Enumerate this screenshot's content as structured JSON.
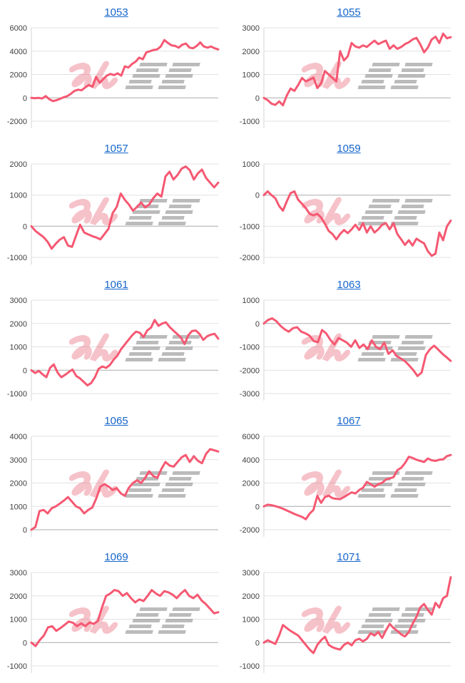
{
  "colors": {
    "line": "#f55872",
    "link": "#1766cc",
    "grid": "#e2e2e2",
    "baseline": "#ababab",
    "axis": "#d6d6d6",
    "tick": "#3f3f3f",
    "wm_pink": "rgba(231,95,113,0.38)",
    "wm_gray": "rgba(125,125,125,0.52)"
  },
  "watermark": {
    "text": "みんレポ",
    "style": "pink-kana-plus-gray-striped-logo"
  },
  "chart_data": [
    {
      "type": "line",
      "title": "1053",
      "ylim": [
        -2000,
        6000
      ],
      "yticks": [
        6000,
        4000,
        2000,
        0,
        -2000
      ],
      "grid": true,
      "values": [
        0,
        -30,
        0,
        -50,
        150,
        -120,
        -280,
        -200,
        -80,
        50,
        150,
        350,
        600,
        700,
        650,
        900,
        1100,
        950,
        1800,
        1300,
        1600,
        1900,
        2050,
        1950,
        2100,
        1900,
        2700,
        2600,
        2900,
        3100,
        3450,
        3300,
        3900,
        4000,
        4100,
        4150,
        4400,
        4950,
        4700,
        4500,
        4450,
        4300,
        4550,
        4650,
        4300,
        4250,
        4450,
        4750,
        4400,
        4300,
        4400,
        4250,
        4150
      ]
    },
    {
      "type": "line",
      "title": "1055",
      "ylim": [
        -1000,
        3000
      ],
      "yticks": [
        3000,
        2000,
        1000,
        0,
        -1000
      ],
      "grid": true,
      "values": [
        0,
        -100,
        -250,
        -300,
        -150,
        -320,
        100,
        400,
        300,
        550,
        850,
        700,
        780,
        870,
        420,
        620,
        1150,
        1000,
        850,
        700,
        2000,
        1600,
        1780,
        2350,
        2200,
        2150,
        2250,
        2180,
        2320,
        2450,
        2300,
        2380,
        2450,
        2100,
        2250,
        2100,
        2180,
        2300,
        2380,
        2500,
        2570,
        2300,
        1950,
        2150,
        2500,
        2620,
        2350,
        2750,
        2550,
        2600
      ]
    },
    {
      "type": "line",
      "title": "1057",
      "ylim": [
        -1000,
        2000
      ],
      "yticks": [
        2000,
        1000,
        0,
        -1000
      ],
      "grid": true,
      "values": [
        0,
        -150,
        -250,
        -350,
        -500,
        -720,
        -560,
        -430,
        -350,
        -620,
        -660,
        -300,
        50,
        -200,
        -260,
        -320,
        -360,
        -420,
        -250,
        -80,
        420,
        620,
        1050,
        850,
        700,
        500,
        620,
        760,
        600,
        700,
        900,
        1050,
        950,
        1600,
        1750,
        1500,
        1650,
        1850,
        1920,
        1800,
        1500,
        1700,
        1820,
        1550,
        1400,
        1250,
        1400
      ]
    },
    {
      "type": "line",
      "title": "1059",
      "ylim": [
        -2000,
        1000
      ],
      "yticks": [
        1000,
        0,
        -1000,
        -2000
      ],
      "grid": true,
      "values": [
        0,
        120,
        0,
        -100,
        -350,
        -500,
        -200,
        60,
        120,
        -150,
        -280,
        -420,
        -600,
        -650,
        -600,
        -720,
        -920,
        -1150,
        -1250,
        -1420,
        -1250,
        -1120,
        -1220,
        -1100,
        -950,
        -1120,
        -900,
        -1200,
        -1000,
        -1200,
        -1100,
        -950,
        -900,
        -1100,
        -900,
        -1250,
        -1420,
        -1600,
        -1450,
        -1620,
        -1400,
        -1480,
        -1550,
        -1800,
        -1950,
        -1880,
        -1200,
        -1450,
        -1000,
        -820
      ]
    },
    {
      "type": "line",
      "title": "1061",
      "ylim": [
        -1000,
        3000
      ],
      "yticks": [
        3000,
        2000,
        1000,
        0,
        -1000
      ],
      "grid": true,
      "values": [
        0,
        -120,
        -30,
        -180,
        -300,
        100,
        250,
        -100,
        -300,
        -200,
        -80,
        30,
        -250,
        -350,
        -500,
        -650,
        -550,
        -300,
        60,
        160,
        100,
        220,
        450,
        620,
        900,
        1100,
        1300,
        1500,
        1650,
        1600,
        1420,
        1700,
        1820,
        2150,
        1900,
        2000,
        2050,
        1850,
        1700,
        1550,
        1400,
        1120,
        1500,
        1680,
        1700,
        1550,
        1300,
        1450,
        1520,
        1560,
        1350
      ]
    },
    {
      "type": "line",
      "title": "1063",
      "ylim": [
        -3000,
        1000
      ],
      "yticks": [
        1000,
        0,
        -1000,
        -2000,
        -3000
      ],
      "grid": true,
      "values": [
        0,
        150,
        220,
        100,
        -100,
        -250,
        -350,
        -200,
        -160,
        -350,
        -420,
        -520,
        -750,
        -800,
        -280,
        -420,
        -700,
        -900,
        -620,
        -720,
        -820,
        -1000,
        -720,
        -1050,
        -900,
        -1100,
        -720,
        -1000,
        -1100,
        -820,
        -1300,
        -1150,
        -1400,
        -1500,
        -1620,
        -1800,
        -2000,
        -2250,
        -2100,
        -1350,
        -1100,
        -950,
        -1120,
        -1300,
        -1450,
        -1600
      ]
    },
    {
      "type": "line",
      "title": "1065",
      "ylim": [
        0,
        4000
      ],
      "yticks": [
        4000,
        3000,
        2000,
        1000,
        0
      ],
      "grid": true,
      "values": [
        0,
        120,
        800,
        850,
        700,
        920,
        1000,
        1120,
        1250,
        1400,
        1200,
        1000,
        920,
        700,
        850,
        950,
        1350,
        1850,
        1950,
        1850,
        1700,
        1780,
        1560,
        1450,
        1800,
        2000,
        2120,
        2000,
        2220,
        2500,
        2300,
        2220,
        2600,
        2900,
        2750,
        2700,
        2900,
        3100,
        3200,
        2900,
        3150,
        2950,
        2850,
        3250,
        3450,
        3400,
        3350
      ]
    },
    {
      "type": "line",
      "title": "1067",
      "ylim": [
        -2000,
        6000
      ],
      "yticks": [
        6000,
        4000,
        2000,
        0,
        -2000
      ],
      "grid": true,
      "values": [
        0,
        150,
        100,
        20,
        -80,
        -200,
        -350,
        -500,
        -650,
        -780,
        -900,
        -1100,
        -620,
        -300,
        900,
        300,
        800,
        920,
        700,
        650,
        620,
        800,
        1000,
        1200,
        1100,
        1400,
        1600,
        2100,
        1900,
        1680,
        1900,
        2020,
        2300,
        2400,
        2500,
        3100,
        3300,
        3700,
        4250,
        4150,
        4000,
        3900,
        3800,
        4100,
        3950,
        3900,
        4000,
        4020,
        4300,
        4400
      ]
    },
    {
      "type": "line",
      "title": "1069",
      "ylim": [
        -1000,
        3000
      ],
      "yticks": [
        3000,
        2000,
        1000,
        0,
        -1000
      ],
      "grid": true,
      "values": [
        0,
        -150,
        100,
        300,
        650,
        700,
        500,
        620,
        760,
        900,
        850,
        700,
        820,
        700,
        860,
        800,
        920,
        1500,
        2000,
        2100,
        2250,
        2200,
        2000,
        2120,
        1900,
        1720,
        1850,
        1780,
        2000,
        2250,
        2100,
        2000,
        2200,
        2150,
        2050,
        1900,
        2100,
        2250,
        2000,
        1900,
        2050,
        1800,
        1650,
        1450,
        1250,
        1300
      ]
    },
    {
      "type": "line",
      "title": "1071",
      "ylim": [
        -1000,
        3000
      ],
      "yticks": [
        3000,
        2000,
        1000,
        0,
        -1000
      ],
      "grid": true,
      "values": [
        0,
        100,
        20,
        -60,
        300,
        750,
        620,
        500,
        400,
        300,
        100,
        -100,
        -300,
        -450,
        -100,
        100,
        250,
        -100,
        -200,
        -260,
        -300,
        -100,
        0,
        -120,
        100,
        160,
        50,
        160,
        400,
        300,
        450,
        200,
        520,
        800,
        620,
        500,
        350,
        260,
        450,
        800,
        1100,
        1500,
        1650,
        1400,
        1200,
        1700,
        1500,
        1900,
        2000,
        2800
      ]
    }
  ]
}
